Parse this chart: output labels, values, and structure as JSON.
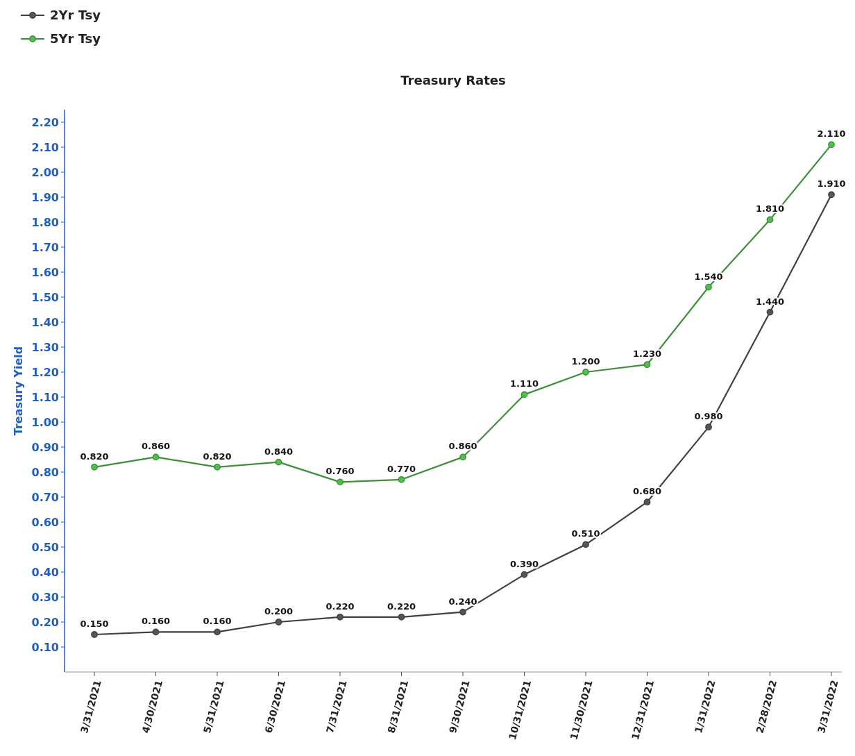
{
  "chart_data": {
    "type": "line",
    "title": "Treasury Rates",
    "ylabel": "Treasury Yield",
    "categories": [
      "3/31/2021",
      "4/30/2021",
      "5/31/2021",
      "6/30/2021",
      "7/31/2021",
      "8/31/2021",
      "9/30/2021",
      "10/31/2021",
      "11/30/2021",
      "12/31/2021",
      "1/31/2022",
      "2/28/2022",
      "3/31/2022"
    ],
    "series": [
      {
        "name": "2Yr Tsy",
        "color": "#404040",
        "values": [
          0.15,
          0.16,
          0.16,
          0.2,
          0.22,
          0.22,
          0.24,
          0.39,
          0.51,
          0.68,
          0.98,
          1.44,
          1.91
        ],
        "value_labels": [
          "0.150",
          "0.160",
          "0.160",
          "0.200",
          "0.220",
          "0.220",
          "0.240",
          "0.390",
          "0.510",
          "0.680",
          "0.980",
          "1.440",
          "1.910"
        ]
      },
      {
        "name": "5Yr Tsy",
        "color": "#3d8f3a",
        "values": [
          0.82,
          0.86,
          0.82,
          0.84,
          0.76,
          0.77,
          0.86,
          1.11,
          1.2,
          1.23,
          1.54,
          1.81,
          2.11
        ],
        "value_labels": [
          "0.820",
          "0.860",
          "0.820",
          "0.840",
          "0.760",
          "0.770",
          "0.860",
          "1.110",
          "1.200",
          "1.230",
          "1.540",
          "1.810",
          "2.110"
        ]
      }
    ],
    "ylim": [
      0,
      2.25
    ],
    "yticks": [
      {
        "value": 0.1,
        "label": "0.10"
      },
      {
        "value": 0.2,
        "label": "0.20"
      },
      {
        "value": 0.3,
        "label": "0.30"
      },
      {
        "value": 0.4,
        "label": "0.40"
      },
      {
        "value": 0.5,
        "label": "0.50"
      },
      {
        "value": 0.6,
        "label": "0.60"
      },
      {
        "value": 0.7,
        "label": "0.70"
      },
      {
        "value": 0.8,
        "label": "0.80"
      },
      {
        "value": 0.9,
        "label": "0.90"
      },
      {
        "value": 1.0,
        "label": "1.00"
      },
      {
        "value": 1.1,
        "label": "1.10"
      },
      {
        "value": 1.2,
        "label": "1.20"
      },
      {
        "value": 1.3,
        "label": "1.30"
      },
      {
        "value": 1.4,
        "label": "1.40"
      },
      {
        "value": 1.5,
        "label": "1.50"
      },
      {
        "value": 1.6,
        "label": "1.60"
      },
      {
        "value": 1.7,
        "label": "1.70"
      },
      {
        "value": 1.8,
        "label": "1.80"
      },
      {
        "value": 1.9,
        "label": "1.90"
      },
      {
        "value": 2.0,
        "label": "2.00"
      },
      {
        "value": 2.1,
        "label": "2.10"
      },
      {
        "value": 2.2,
        "label": "2.20"
      }
    ],
    "legend": "top left",
    "marker": "circle",
    "line_style": "solid",
    "grid": false
  }
}
